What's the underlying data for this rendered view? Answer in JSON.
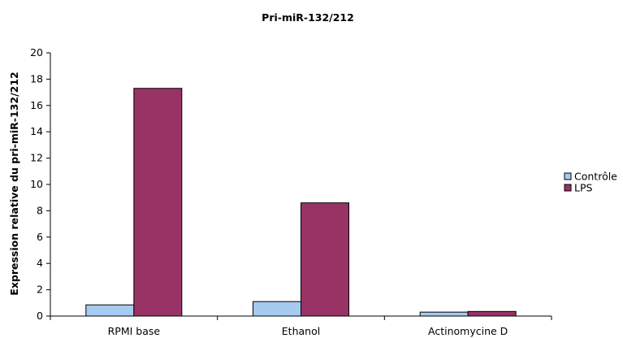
{
  "chart_data": {
    "type": "bar",
    "title": "Pri-miR-132/212",
    "xlabel": "",
    "ylabel": "Expression relative du pri-miR-132/212",
    "categories": [
      "RPMI base",
      "Ethanol",
      "Actinomycine D"
    ],
    "series": [
      {
        "name": "Contrôle",
        "color": "#a6caf0",
        "values": [
          0.85,
          1.1,
          0.3
        ]
      },
      {
        "name": "LPS",
        "color": "#993366",
        "values": [
          17.3,
          8.6,
          0.35
        ]
      }
    ],
    "ylim": [
      0,
      20
    ],
    "yticks": [
      0,
      2,
      4,
      6,
      8,
      10,
      12,
      14,
      16,
      18,
      20
    ],
    "grid": false,
    "legend_position": "right"
  }
}
